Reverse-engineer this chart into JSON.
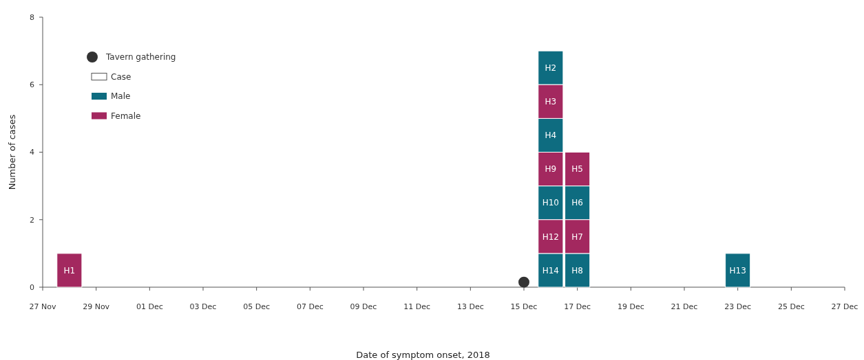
{
  "chart_data": {
    "type": "bar",
    "xlabel": "Date of symptom onset, 2018",
    "ylabel": "Number of cases",
    "xlim": [
      "2018-11-27",
      "2018-12-27"
    ],
    "xticks": [
      {
        "value": "2018-11-27",
        "label": "27 Nov"
      },
      {
        "value": "2018-11-29",
        "label": "29 Nov"
      },
      {
        "value": "2018-12-01",
        "label": "01 Dec"
      },
      {
        "value": "2018-12-03",
        "label": "03 Dec"
      },
      {
        "value": "2018-12-05",
        "label": "05 Dec"
      },
      {
        "value": "2018-12-07",
        "label": "07 Dec"
      },
      {
        "value": "2018-12-09",
        "label": "09 Dec"
      },
      {
        "value": "2018-12-11",
        "label": "11 Dec"
      },
      {
        "value": "2018-12-13",
        "label": "13 Dec"
      },
      {
        "value": "2018-12-15",
        "label": "15 Dec"
      },
      {
        "value": "2018-12-17",
        "label": "17 Dec"
      },
      {
        "value": "2018-12-19",
        "label": "19 Dec"
      },
      {
        "value": "2018-12-21",
        "label": "21 Dec"
      },
      {
        "value": "2018-12-23",
        "label": "23 Dec"
      },
      {
        "value": "2018-12-25",
        "label": "25 Dec"
      },
      {
        "value": "2018-12-27",
        "label": "27 Dec"
      }
    ],
    "ylim": [
      0,
      8
    ],
    "yticks": [
      0,
      2,
      4,
      6,
      8
    ],
    "grid": false,
    "legend": "top left",
    "annotations": [
      "Case"
    ],
    "series": [
      {
        "name": "Tavern gathering",
        "type": "scatter",
        "marker": "circle",
        "color": "#333333",
        "x": [
          "2018-12-15"
        ],
        "values": [
          0.15
        ]
      },
      {
        "name": "Male",
        "color": "#0e6c80",
        "x": [
          "2018-12-16",
          "2018-12-17",
          "2018-12-23"
        ],
        "base": [
          0,
          0,
          0
        ],
        "values": [
          1,
          1,
          1
        ],
        "value_labels": [
          "H14",
          "H8",
          "H13"
        ]
      },
      {
        "color": "#0e6c80",
        "x": [
          "2018-12-16",
          "2018-12-17"
        ],
        "base": [
          2,
          2
        ],
        "values": [
          1,
          1
        ],
        "value_labels": [
          "H10",
          "H6"
        ]
      },
      {
        "color": "#0e6c80",
        "x": [
          "2018-12-16"
        ],
        "base": [
          4
        ],
        "values": [
          1
        ],
        "value_labels": [
          "H4"
        ]
      },
      {
        "color": "#0e6c80",
        "x": [
          "2018-12-16"
        ],
        "base": [
          6
        ],
        "values": [
          1
        ],
        "value_labels": [
          "H2"
        ]
      },
      {
        "name": "Female",
        "color": "#a3285f",
        "x": [
          "2018-11-28",
          "2018-12-16",
          "2018-12-17"
        ],
        "base": [
          0,
          1,
          1
        ],
        "values": [
          1,
          1,
          1
        ],
        "value_labels": [
          "H1",
          "H12",
          "H7"
        ]
      },
      {
        "color": "#a3285f",
        "x": [
          "2018-12-16",
          "2018-12-17"
        ],
        "base": [
          3,
          3
        ],
        "values": [
          1,
          1
        ],
        "value_labels": [
          "H9",
          "H5"
        ]
      },
      {
        "color": "#a3285f",
        "x": [
          "2018-12-16"
        ],
        "base": [
          5
        ],
        "values": [
          1
        ],
        "value_labels": [
          "H3"
        ]
      }
    ]
  }
}
